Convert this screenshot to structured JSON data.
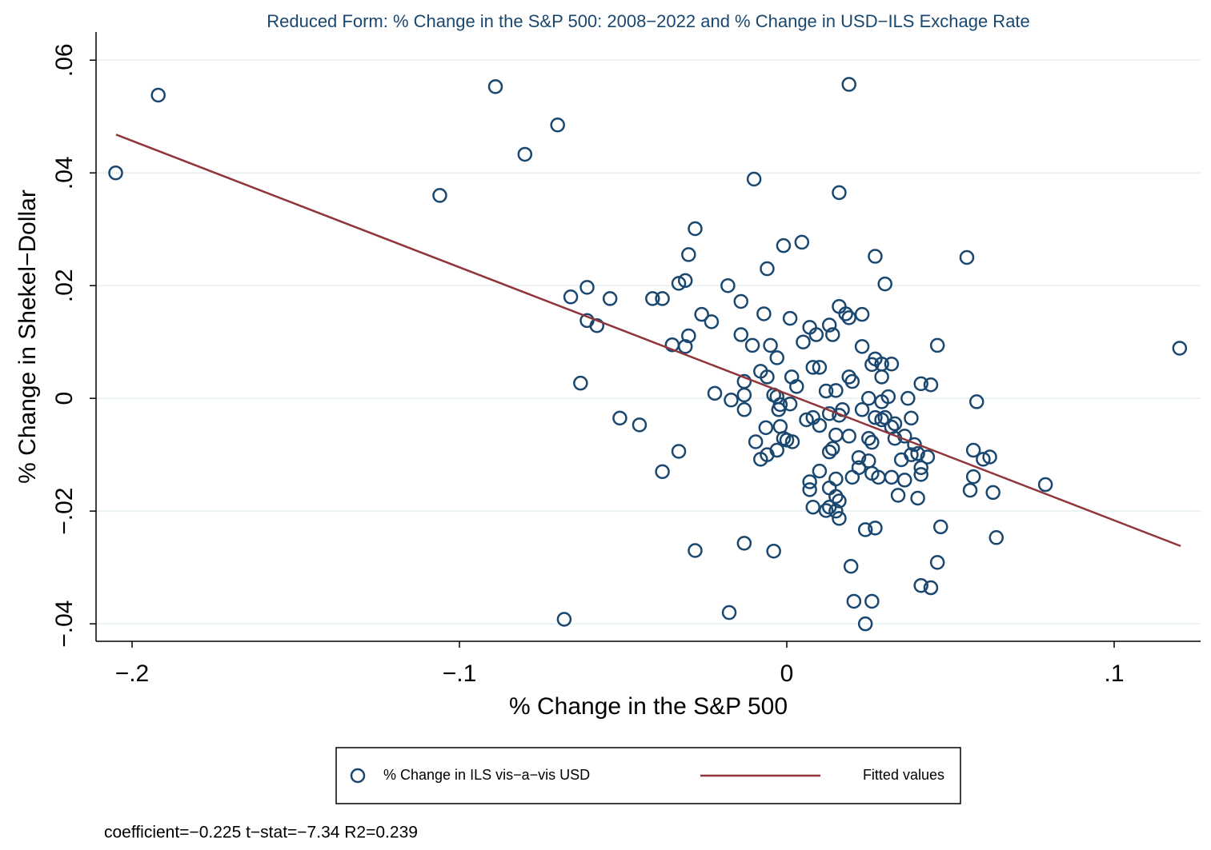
{
  "chart_data": {
    "type": "scatter",
    "title": "Reduced Form: % Change in the S&P 500: 2008−2022 and % Change in USD−ILS Exchage Rate",
    "x_label": "% Change in the S&P 500",
    "y_label": "% Change in Shekel−Dollar",
    "annotation": "coefficient=−0.225 t−stat=−7.34 R2=0.239",
    "xlim": [
      -0.211,
      0.1264
    ],
    "ylim": [
      -0.0431,
      0.065
    ],
    "xticks": [
      {
        "value": -0.2,
        "label": "−.2"
      },
      {
        "value": -0.1,
        "label": "−.1"
      },
      0,
      {
        "value": 0.1,
        "label": ".1"
      }
    ],
    "yticks": [
      {
        "value": -0.04,
        "label": "−.04"
      },
      {
        "value": -0.02,
        "label": "−.02"
      },
      0,
      {
        "value": 0.02,
        "label": ".02"
      },
      {
        "value": 0.04,
        "label": ".04"
      },
      {
        "value": 0.06,
        "label": ".06"
      }
    ],
    "grid": true,
    "legend_position": "bottom",
    "series": [
      {
        "name": "% Change in ILS vis−a−vis USD",
        "color": "#1a476f",
        "kind": "scatter",
        "x": [
          -0.205,
          -0.192,
          -0.089,
          -0.07,
          -0.08,
          -0.106,
          0.019,
          -0.01,
          0.016,
          -0.028,
          -0.001,
          0.0046,
          -0.03,
          0.027,
          0.055,
          -0.006,
          -0.033,
          -0.031,
          -0.018,
          0.03,
          -0.061,
          -0.066,
          -0.054,
          -0.041,
          -0.038,
          -0.014,
          0.016,
          -0.026,
          -0.007,
          0.018,
          0.019,
          0.023,
          -0.061,
          -0.058,
          -0.023,
          0.001,
          0.007,
          0.013,
          -0.014,
          -0.03,
          0.009,
          0.014,
          0.005,
          -0.035,
          -0.031,
          -0.0105,
          -0.005,
          0.023,
          0.046,
          0.12,
          -0.003,
          0.027,
          0.029,
          0.032,
          0.026,
          -0.008,
          0.008,
          0.01,
          0.029,
          0.019,
          -0.006,
          0.0015,
          -0.013,
          0.02,
          -0.063,
          0.003,
          0.041,
          0.044,
          0.012,
          0.015,
          -0.022,
          -0.013,
          -0.004,
          -0.003,
          0.025,
          0.031,
          0.037,
          -0.017,
          0.029,
          0.058,
          -0.002,
          0.001,
          -0.013,
          -0.0025,
          0.017,
          0.023,
          0.013,
          0.016,
          0.027,
          0.03,
          0.038,
          -0.051,
          0.006,
          0.008,
          0.029,
          0.033,
          -0.045,
          0.01,
          0.032,
          -0.002,
          -0.0064,
          0.015,
          0.019,
          0.036,
          0.025,
          0.033,
          -0.001,
          -0.0095,
          0,
          0.0017,
          0.026,
          0.039,
          0.014,
          -0.003,
          0.013,
          -0.033,
          0.057,
          0.04,
          0.038,
          -0.006,
          0.043,
          0.062,
          0.022,
          0.06,
          0.035,
          -0.008,
          0.025,
          0.022,
          0.041,
          -0.038,
          0.01,
          0.026,
          0.041,
          0.02,
          0.028,
          0.032,
          0.015,
          0.036,
          0.057,
          0.007,
          0.079,
          0.007,
          0.013,
          0.056,
          0.063,
          0.034,
          0.015,
          0.016,
          0.04,
          0.008,
          0.012,
          0.013,
          0.015,
          0.016,
          0.024,
          0.027,
          0.047,
          0.064,
          -0.013,
          -0.028,
          -0.004,
          0.046,
          0.0196,
          0.041,
          0.044,
          0.0205,
          0.026,
          -0.0176,
          -0.068,
          0.024
        ],
        "values": [
          0.04,
          0.0538,
          0.0553,
          0.0485,
          0.0433,
          0.036,
          0.0557,
          0.0389,
          0.0365,
          0.0301,
          0.0271,
          0.0277,
          0.0255,
          0.0252,
          0.025,
          0.023,
          0.0204,
          0.0209,
          0.02,
          0.0203,
          0.0197,
          0.018,
          0.0177,
          0.0177,
          0.0177,
          0.0172,
          0.0163,
          0.0149,
          0.015,
          0.015,
          0.0143,
          0.0149,
          0.0138,
          0.0129,
          0.0136,
          0.0142,
          0.0126,
          0.013,
          0.0113,
          0.0111,
          0.0113,
          0.0113,
          0.01,
          0.0095,
          0.0092,
          0.0094,
          0.0094,
          0.0092,
          0.0094,
          0.0089,
          0.0072,
          0.007,
          0.0061,
          0.0061,
          0.006,
          0.0048,
          0.0055,
          0.0055,
          0.0038,
          0.0038,
          0.0038,
          0.0038,
          0.003,
          0.003,
          0.0027,
          0.0021,
          0.0026,
          0.0024,
          0.0013,
          0.0014,
          0.0009,
          0.0006,
          0.0006,
          0.0003,
          0,
          0.0003,
          0,
          -0.0003,
          -0.0006,
          -0.0006,
          -0.0011,
          -0.001,
          -0.002,
          -0.002,
          -0.002,
          -0.002,
          -0.0027,
          -0.003,
          -0.0034,
          -0.0034,
          -0.0035,
          -0.0035,
          -0.0038,
          -0.0034,
          -0.0038,
          -0.0045,
          -0.0047,
          -0.0048,
          -0.0051,
          -0.005,
          -0.0052,
          -0.0065,
          -0.0067,
          -0.0067,
          -0.0071,
          -0.0071,
          -0.0071,
          -0.0077,
          -0.0074,
          -0.0077,
          -0.0078,
          -0.0082,
          -0.0089,
          -0.0092,
          -0.0095,
          -0.0094,
          -0.0092,
          -0.0098,
          -0.01,
          -0.01,
          -0.0104,
          -0.0104,
          -0.0105,
          -0.0108,
          -0.0109,
          -0.0108,
          -0.0111,
          -0.0123,
          -0.0123,
          -0.013,
          -0.0129,
          -0.0133,
          -0.0135,
          -0.014,
          -0.014,
          -0.014,
          -0.0143,
          -0.0145,
          -0.0139,
          -0.0148,
          -0.0153,
          -0.0162,
          -0.0159,
          -0.0163,
          -0.0167,
          -0.0172,
          -0.0174,
          -0.0182,
          -0.0177,
          -0.0193,
          -0.0199,
          -0.0193,
          -0.02,
          -0.0213,
          -0.0233,
          -0.023,
          -0.0228,
          -0.0247,
          -0.0257,
          -0.027,
          -0.0271,
          -0.0291,
          -0.0298,
          -0.0332,
          -0.0336,
          -0.036,
          -0.036,
          -0.038,
          -0.0392,
          -0.04
        ]
      },
      {
        "name": "Fitted values",
        "color": "#90353b",
        "kind": "line",
        "x": [
          -0.2049,
          0.1203
        ],
        "values": [
          0.0468,
          -0.0262
        ]
      }
    ]
  }
}
